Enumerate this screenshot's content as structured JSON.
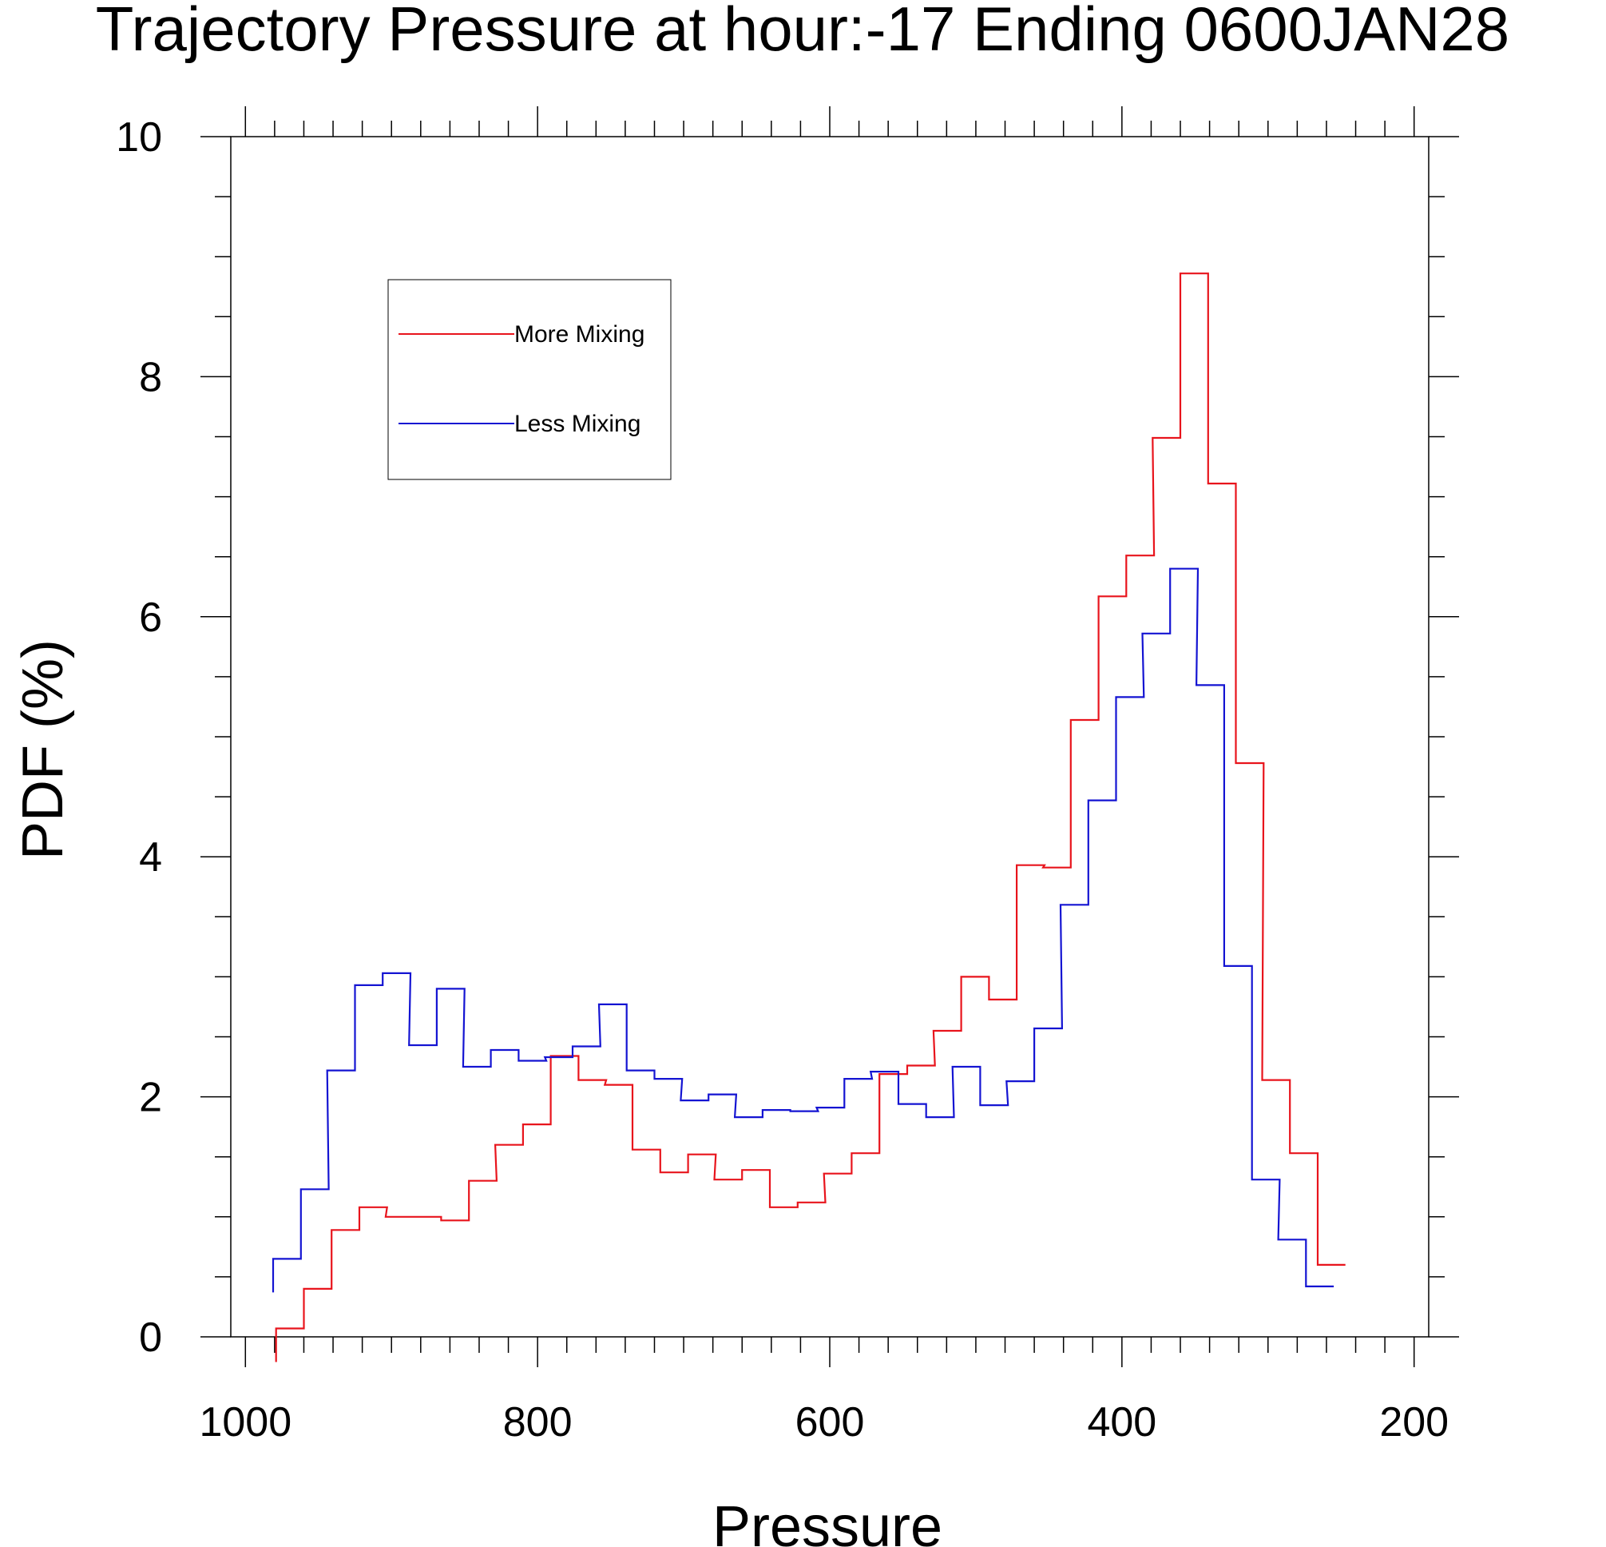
{
  "chart_data": {
    "type": "line",
    "step": true,
    "title": "Trajectory Pressure at hour:-17 Ending 0600JAN28",
    "xlabel": "Pressure",
    "ylabel": "PDF (%)",
    "xlim": [
      1010,
      190
    ],
    "ylim": [
      0,
      10
    ],
    "x_reversed": true,
    "xticks": [
      1000,
      800,
      600,
      400,
      200
    ],
    "yticks": [
      0,
      2,
      4,
      6,
      8,
      10
    ],
    "grid": false,
    "legend_position": "upper-left",
    "series": [
      {
        "name": "More Mixing",
        "color": "#e8141c",
        "x": [
          979,
          960,
          941,
          922,
          904,
          885,
          866,
          847,
          829,
          810,
          791,
          772,
          754,
          735,
          716,
          697,
          679,
          660,
          641,
          622,
          604,
          585,
          566,
          547,
          529,
          510,
          491,
          472,
          454,
          435,
          416,
          397,
          379,
          360,
          341,
          322,
          304,
          285,
          266
        ],
        "values": [
          0.07,
          0.4,
          0.89,
          1.08,
          1.0,
          1.0,
          0.97,
          1.3,
          1.6,
          1.77,
          2.34,
          2.14,
          2.1,
          1.56,
          1.37,
          1.52,
          1.31,
          1.39,
          1.08,
          1.12,
          1.36,
          1.53,
          2.19,
          2.26,
          2.55,
          3.0,
          2.81,
          3.93,
          3.91,
          5.14,
          6.17,
          6.51,
          7.49,
          8.86,
          7.11,
          4.78,
          2.14,
          1.53,
          0.6
        ]
      },
      {
        "name": "Less Mixing",
        "color": "#1414d2",
        "x": [
          981,
          962,
          944,
          925,
          906,
          888,
          869,
          851,
          832,
          813,
          795,
          776,
          758,
          739,
          720,
          702,
          683,
          665,
          646,
          627,
          609,
          590,
          572,
          553,
          534,
          516,
          497,
          479,
          460,
          442,
          423,
          404,
          386,
          367,
          349,
          330,
          311,
          293,
          274
        ],
        "values": [
          0.65,
          1.23,
          2.22,
          2.93,
          3.03,
          2.43,
          2.9,
          2.25,
          2.39,
          2.3,
          2.33,
          2.42,
          2.77,
          2.22,
          2.15,
          1.97,
          2.02,
          1.83,
          1.89,
          1.88,
          1.91,
          2.15,
          2.21,
          1.94,
          1.83,
          2.25,
          1.93,
          2.13,
          2.57,
          3.6,
          4.47,
          5.33,
          5.86,
          6.4,
          5.43,
          3.09,
          1.31,
          0.81,
          0.42
        ]
      }
    ]
  }
}
